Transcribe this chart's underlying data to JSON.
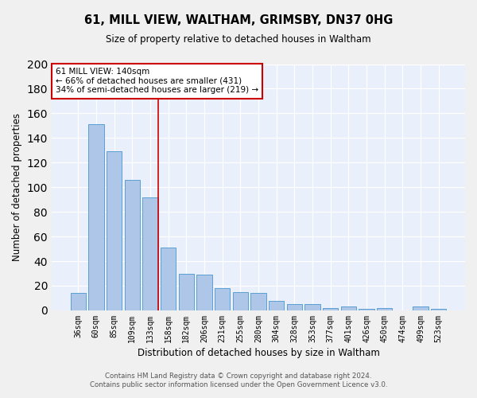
{
  "title": "61, MILL VIEW, WALTHAM, GRIMSBY, DN37 0HG",
  "subtitle": "Size of property relative to detached houses in Waltham",
  "xlabel": "Distribution of detached houses by size in Waltham",
  "ylabel": "Number of detached properties",
  "categories": [
    "36sqm",
    "60sqm",
    "85sqm",
    "109sqm",
    "133sqm",
    "158sqm",
    "182sqm",
    "206sqm",
    "231sqm",
    "255sqm",
    "280sqm",
    "304sqm",
    "328sqm",
    "353sqm",
    "377sqm",
    "401sqm",
    "426sqm",
    "450sqm",
    "474sqm",
    "499sqm",
    "523sqm"
  ],
  "values": [
    14,
    151,
    129,
    106,
    92,
    51,
    30,
    29,
    18,
    15,
    14,
    8,
    5,
    5,
    2,
    3,
    1,
    2,
    0,
    3,
    1
  ],
  "bar_color": "#aec6e8",
  "bar_edge_color": "#5a9fd4",
  "highlight_line_color": "#cc0000",
  "annotation_text": "61 MILL VIEW: 140sqm\n← 66% of detached houses are smaller (431)\n34% of semi-detached houses are larger (219) →",
  "annotation_box_color": "#ffffff",
  "annotation_box_edge_color": "#cc0000",
  "ylim": [
    0,
    200
  ],
  "background_color": "#eaf0fb",
  "grid_color": "#ffffff",
  "footer_line1": "Contains HM Land Registry data © Crown copyright and database right 2024.",
  "footer_line2": "Contains public sector information licensed under the Open Government Licence v3.0."
}
